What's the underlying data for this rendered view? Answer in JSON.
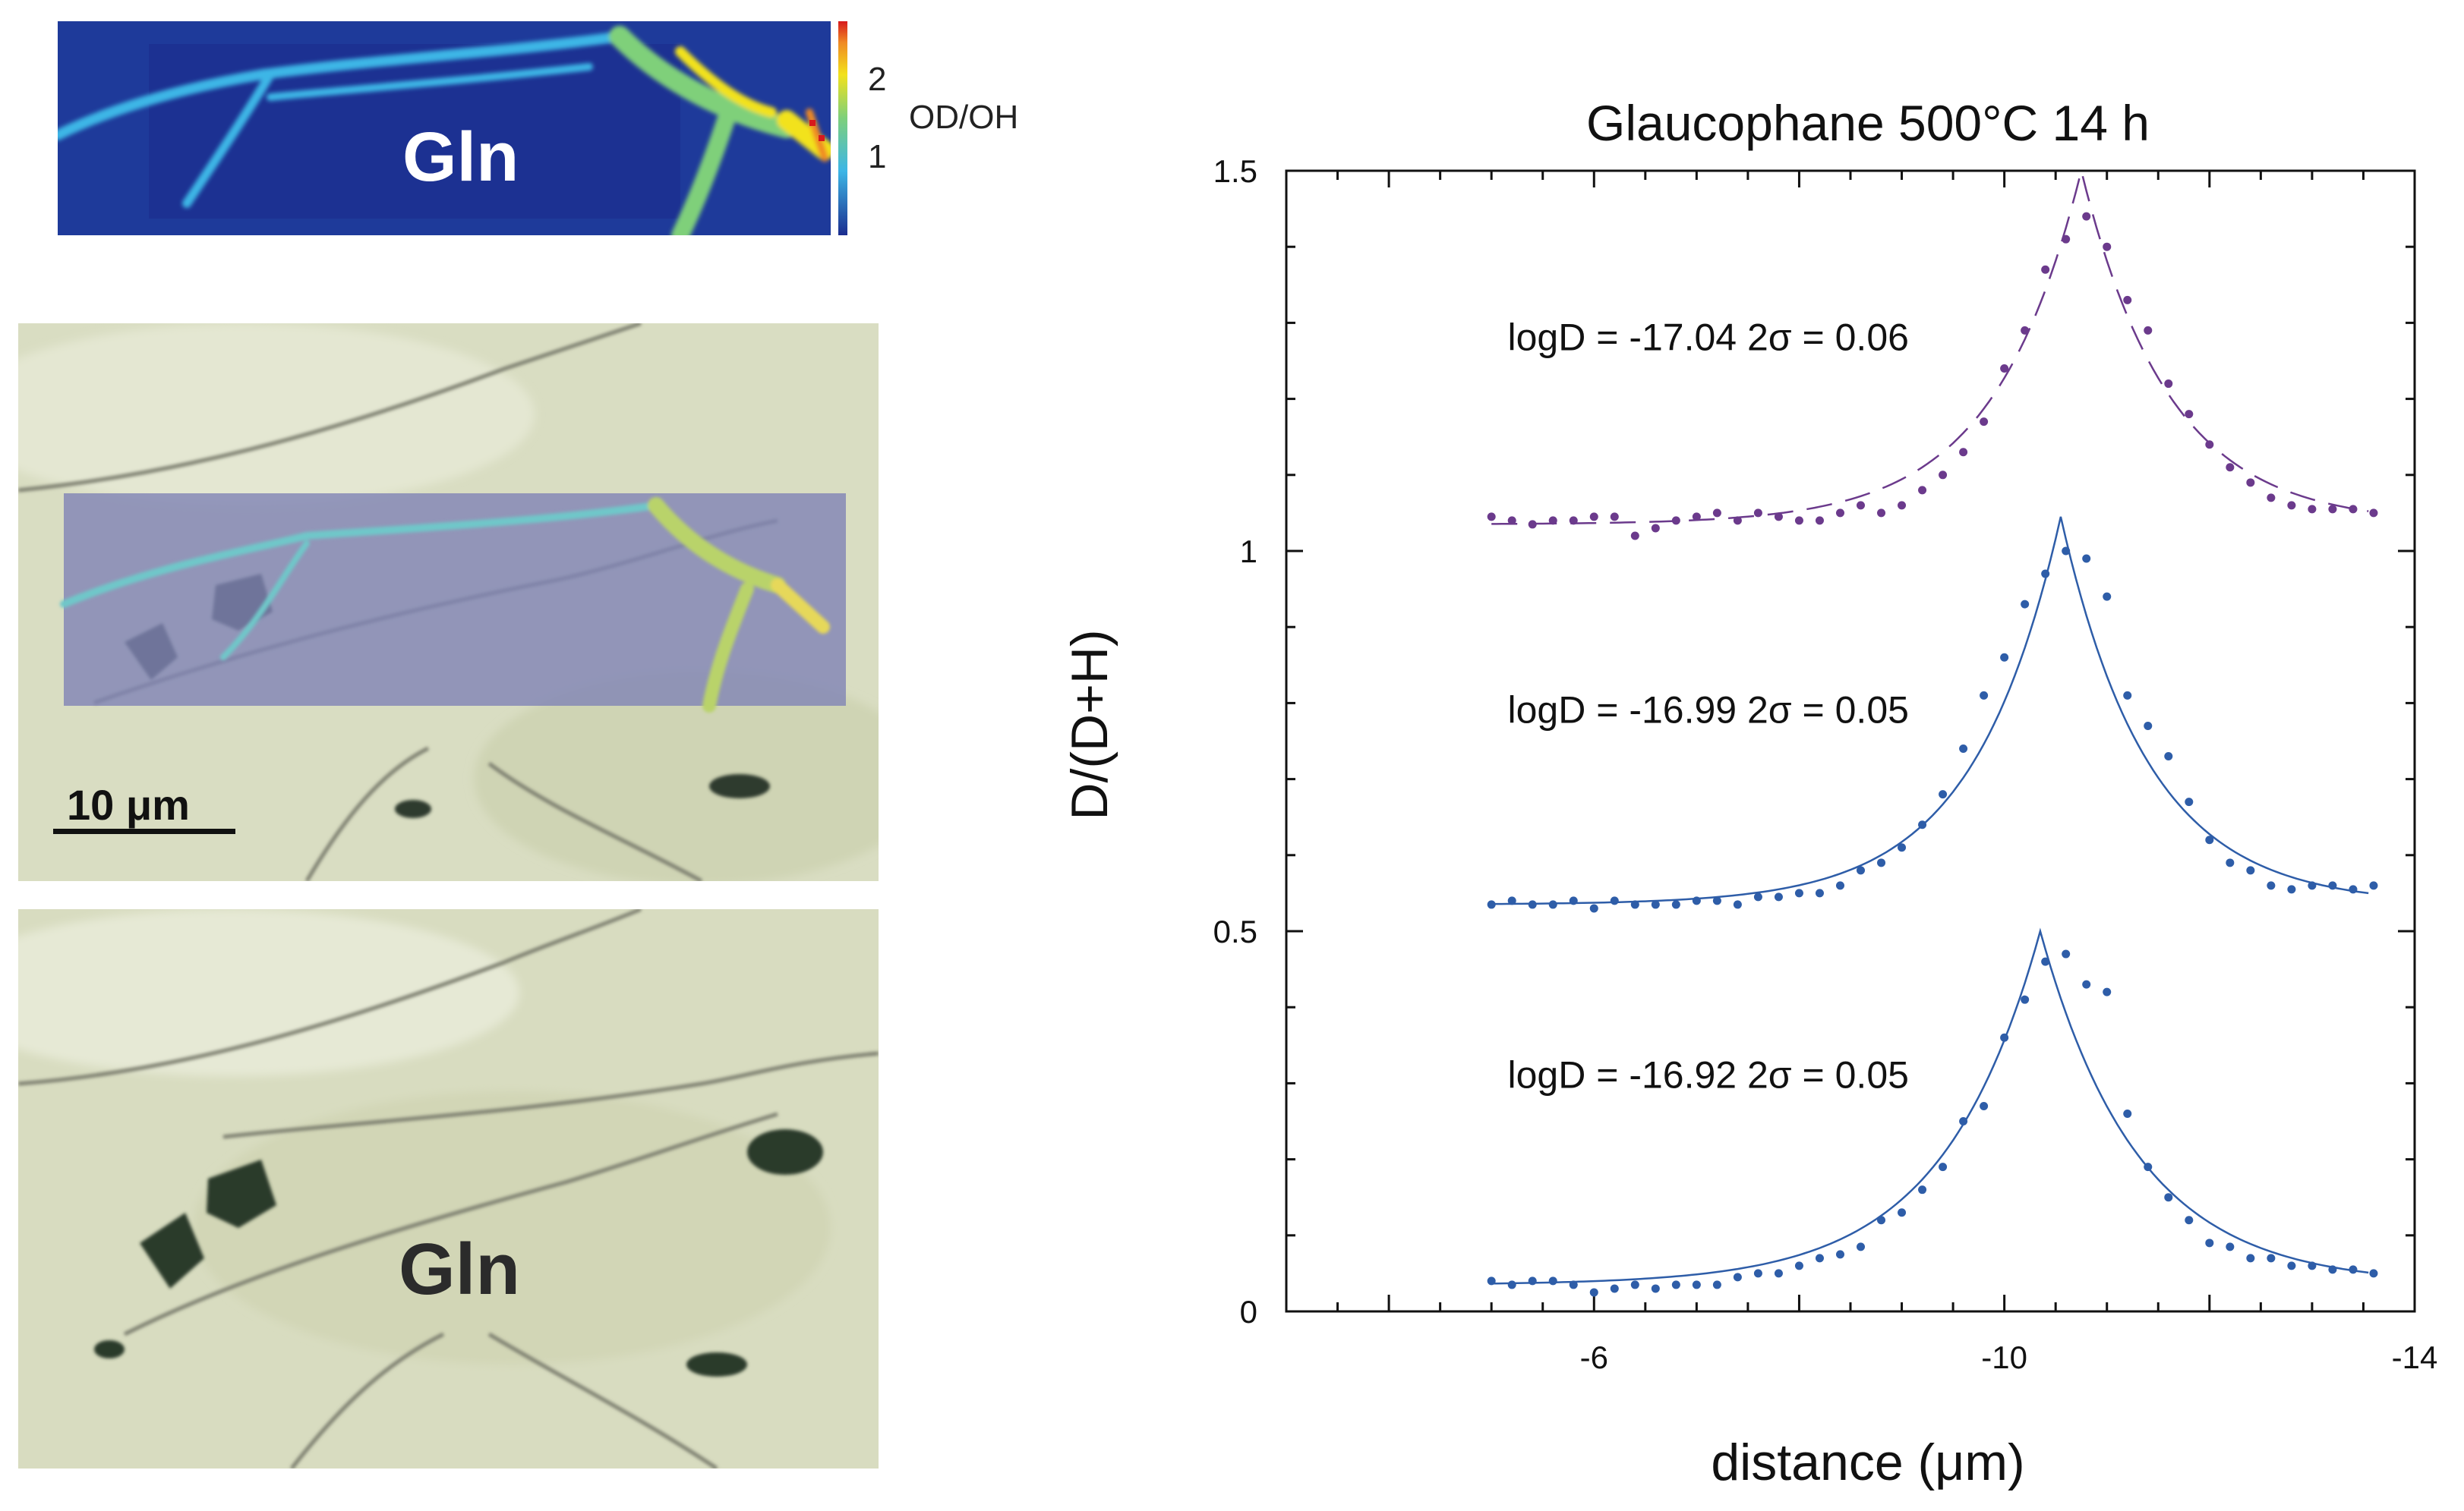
{
  "map": {
    "mineral_label": "Gln",
    "colorbar_label": "OD/OH",
    "colorbar_ticks": [
      "2",
      "1"
    ],
    "colors": {
      "low": "#1b2d8f",
      "mid": "#3cb6e6",
      "high": "#f2e21c",
      "peak": "#d7191c"
    }
  },
  "micrographs": {
    "scale_bar_label": "10 μm",
    "mineral_label": "Gln"
  },
  "chart_data": {
    "type": "scatter",
    "title": "Glaucophane 500°C 14 h",
    "xlabel": "distance (μm)",
    "ylabel": "D/(D+H)",
    "xlim": [
      -3,
      -14
    ],
    "ylim": [
      0,
      1.5
    ],
    "xticks": [
      "-6",
      "-10",
      "-14"
    ],
    "yticks": [
      "0",
      "0.5",
      "1",
      "1.5"
    ],
    "grid": false,
    "annotations": [
      "logD = -17.04 2σ = 0.06",
      "logD = -16.99  2σ = 0.05",
      "logD = -16.92  2σ = 0.05"
    ],
    "series": [
      {
        "color": "#6b3a8c",
        "fit_style": "dashed",
        "fit": {
          "center": -10.75,
          "peak": 1.5,
          "base": 1.035,
          "decay": 0.85
        },
        "points": [
          [
            -5.0,
            1.045
          ],
          [
            -5.2,
            1.04
          ],
          [
            -5.4,
            1.035
          ],
          [
            -5.6,
            1.04
          ],
          [
            -5.8,
            1.04
          ],
          [
            -6.0,
            1.045
          ],
          [
            -6.2,
            1.045
          ],
          [
            -6.4,
            1.02
          ],
          [
            -6.6,
            1.03
          ],
          [
            -6.8,
            1.04
          ],
          [
            -7.0,
            1.045
          ],
          [
            -7.2,
            1.05
          ],
          [
            -7.4,
            1.04
          ],
          [
            -7.6,
            1.05
          ],
          [
            -7.8,
            1.045
          ],
          [
            -8.0,
            1.04
          ],
          [
            -8.2,
            1.04
          ],
          [
            -8.4,
            1.05
          ],
          [
            -8.6,
            1.06
          ],
          [
            -8.8,
            1.05
          ],
          [
            -9.0,
            1.06
          ],
          [
            -9.2,
            1.08
          ],
          [
            -9.4,
            1.1
          ],
          [
            -9.6,
            1.13
          ],
          [
            -9.8,
            1.17
          ],
          [
            -10.0,
            1.24
          ],
          [
            -10.2,
            1.29
          ],
          [
            -10.4,
            1.37
          ],
          [
            -10.6,
            1.41
          ],
          [
            -10.8,
            1.44
          ],
          [
            -11.0,
            1.4
          ],
          [
            -11.2,
            1.33
          ],
          [
            -11.4,
            1.29
          ],
          [
            -11.6,
            1.22
          ],
          [
            -11.8,
            1.18
          ],
          [
            -12.0,
            1.14
          ],
          [
            -12.2,
            1.11
          ],
          [
            -12.4,
            1.09
          ],
          [
            -12.6,
            1.07
          ],
          [
            -12.8,
            1.06
          ],
          [
            -13.0,
            1.055
          ],
          [
            -13.2,
            1.055
          ],
          [
            -13.4,
            1.055
          ],
          [
            -13.6,
            1.05
          ]
        ]
      },
      {
        "color": "#2e5da8",
        "fit_style": "solid",
        "fit": {
          "center": -10.55,
          "peak": 1.045,
          "base": 0.535,
          "decay": 0.85
        },
        "points": [
          [
            -5.0,
            0.535
          ],
          [
            -5.2,
            0.54
          ],
          [
            -5.4,
            0.535
          ],
          [
            -5.6,
            0.535
          ],
          [
            -5.8,
            0.54
          ],
          [
            -6.0,
            0.53
          ],
          [
            -6.2,
            0.54
          ],
          [
            -6.4,
            0.535
          ],
          [
            -6.6,
            0.535
          ],
          [
            -6.8,
            0.535
          ],
          [
            -7.0,
            0.54
          ],
          [
            -7.2,
            0.54
          ],
          [
            -7.4,
            0.535
          ],
          [
            -7.6,
            0.545
          ],
          [
            -7.8,
            0.545
          ],
          [
            -8.0,
            0.55
          ],
          [
            -8.2,
            0.55
          ],
          [
            -8.4,
            0.56
          ],
          [
            -8.6,
            0.58
          ],
          [
            -8.8,
            0.59
          ],
          [
            -9.0,
            0.61
          ],
          [
            -9.2,
            0.64
          ],
          [
            -9.4,
            0.68
          ],
          [
            -9.6,
            0.74
          ],
          [
            -9.8,
            0.81
          ],
          [
            -10.0,
            0.86
          ],
          [
            -10.2,
            0.93
          ],
          [
            -10.4,
            0.97
          ],
          [
            -10.6,
            1.0
          ],
          [
            -10.8,
            0.99
          ],
          [
            -11.0,
            0.94
          ],
          [
            -11.2,
            0.81
          ],
          [
            -11.4,
            0.77
          ],
          [
            -11.6,
            0.73
          ],
          [
            -11.8,
            0.67
          ],
          [
            -12.0,
            0.62
          ],
          [
            -12.2,
            0.59
          ],
          [
            -12.4,
            0.58
          ],
          [
            -12.6,
            0.56
          ],
          [
            -12.8,
            0.555
          ],
          [
            -13.0,
            0.56
          ],
          [
            -13.2,
            0.56
          ],
          [
            -13.4,
            0.555
          ],
          [
            -13.6,
            0.56
          ]
        ]
      },
      {
        "color": "#2e5da8",
        "fit_style": "solid",
        "fit": {
          "center": -10.35,
          "peak": 0.5,
          "base": 0.035,
          "decay": 0.95
        },
        "points": [
          [
            -5.0,
            0.04
          ],
          [
            -5.2,
            0.035
          ],
          [
            -5.4,
            0.04
          ],
          [
            -5.6,
            0.04
          ],
          [
            -5.8,
            0.035
          ],
          [
            -6.0,
            0.025
          ],
          [
            -6.2,
            0.03
          ],
          [
            -6.4,
            0.035
          ],
          [
            -6.6,
            0.03
          ],
          [
            -6.8,
            0.035
          ],
          [
            -7.0,
            0.035
          ],
          [
            -7.2,
            0.035
          ],
          [
            -7.4,
            0.045
          ],
          [
            -7.6,
            0.05
          ],
          [
            -7.8,
            0.05
          ],
          [
            -8.0,
            0.06
          ],
          [
            -8.2,
            0.07
          ],
          [
            -8.4,
            0.075
          ],
          [
            -8.6,
            0.085
          ],
          [
            -8.8,
            0.12
          ],
          [
            -9.0,
            0.13
          ],
          [
            -9.2,
            0.16
          ],
          [
            -9.4,
            0.19
          ],
          [
            -9.6,
            0.25
          ],
          [
            -9.8,
            0.27
          ],
          [
            -10.0,
            0.36
          ],
          [
            -10.2,
            0.41
          ],
          [
            -10.4,
            0.46
          ],
          [
            -10.6,
            0.47
          ],
          [
            -10.8,
            0.43
          ],
          [
            -11.0,
            0.42
          ],
          [
            -11.2,
            0.26
          ],
          [
            -11.4,
            0.19
          ],
          [
            -11.6,
            0.15
          ],
          [
            -11.8,
            0.12
          ],
          [
            -12.0,
            0.09
          ],
          [
            -12.2,
            0.085
          ],
          [
            -12.4,
            0.07
          ],
          [
            -12.6,
            0.07
          ],
          [
            -12.8,
            0.06
          ],
          [
            -13.0,
            0.06
          ],
          [
            -13.2,
            0.055
          ],
          [
            -13.4,
            0.055
          ],
          [
            -13.6,
            0.05
          ]
        ]
      }
    ]
  }
}
